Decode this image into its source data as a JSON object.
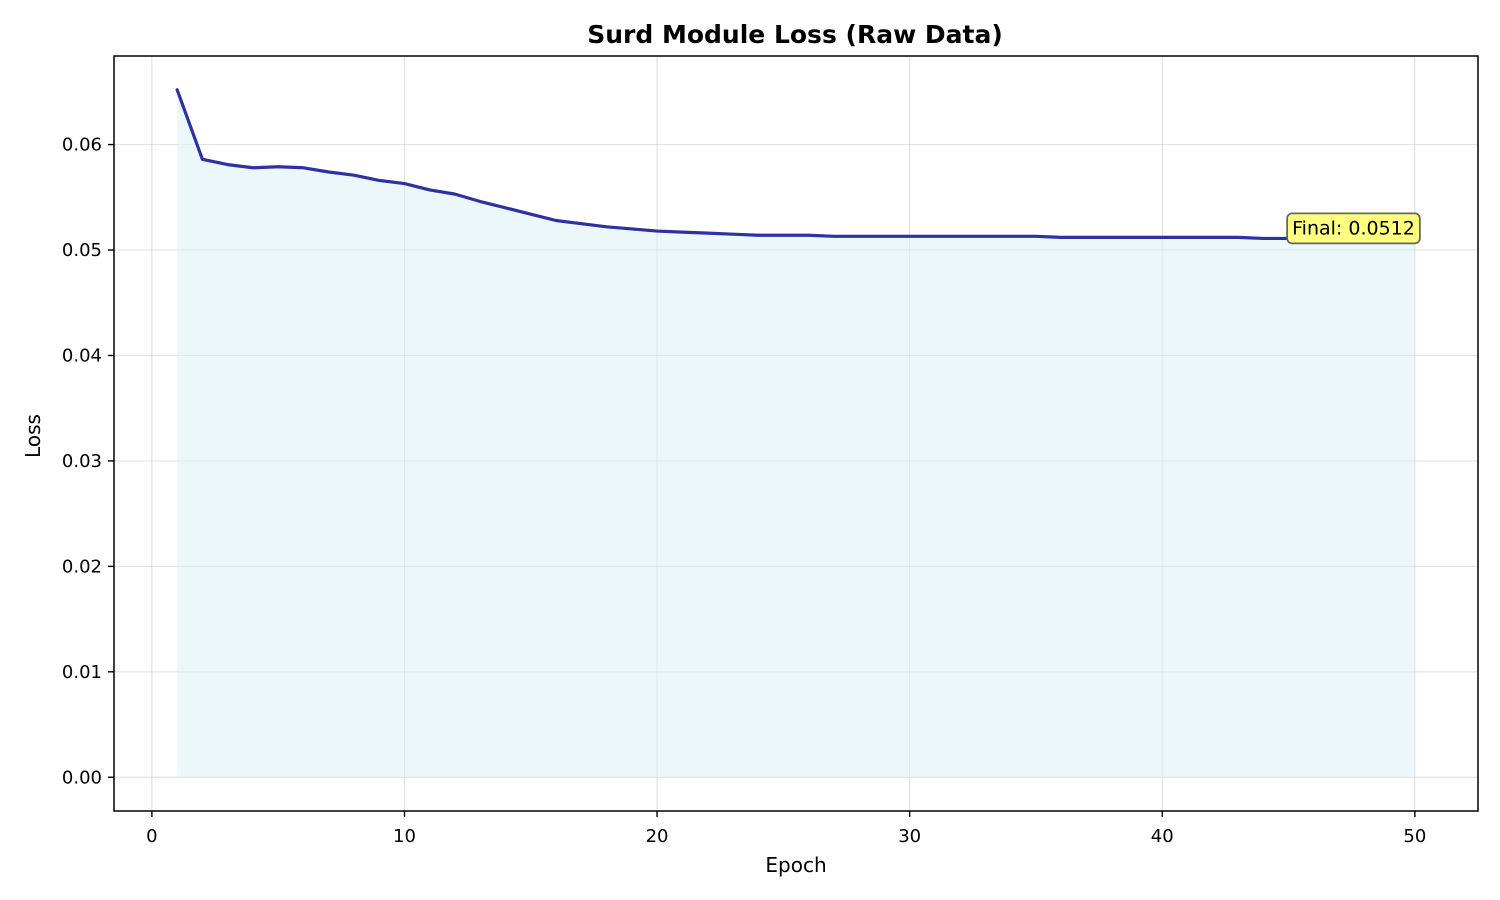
{
  "chart_data": {
    "type": "area",
    "title": "Surd Module Loss (Raw Data)",
    "xlabel": "Epoch",
    "ylabel": "Loss",
    "xlim": [
      -1.5,
      52.5
    ],
    "ylim": [
      -0.0032,
      0.0684
    ],
    "xticks": [
      0,
      10,
      20,
      30,
      40,
      50
    ],
    "yticks": [
      0.0,
      0.01,
      0.02,
      0.03,
      0.04,
      0.05,
      0.06
    ],
    "ytick_labels": [
      "0.00",
      "0.01",
      "0.02",
      "0.03",
      "0.04",
      "0.05",
      "0.06"
    ],
    "grid": true,
    "line_color": "#2e31a0",
    "fill_color": "#ddf0f5",
    "annotation": {
      "text": "Final: 0.0512",
      "epoch": 50,
      "value": 0.0512,
      "box_color": "#ffff80",
      "edge_color": "#666666"
    },
    "x": [
      1,
      2,
      3,
      4,
      5,
      6,
      7,
      8,
      9,
      10,
      11,
      12,
      13,
      14,
      15,
      16,
      17,
      18,
      19,
      20,
      21,
      22,
      23,
      24,
      25,
      26,
      27,
      28,
      29,
      30,
      31,
      32,
      33,
      34,
      35,
      36,
      37,
      38,
      39,
      40,
      41,
      42,
      43,
      44,
      45,
      46,
      47,
      48,
      49,
      50
    ],
    "values": [
      0.0652,
      0.0586,
      0.0581,
      0.0578,
      0.0579,
      0.0578,
      0.0574,
      0.0571,
      0.0566,
      0.0563,
      0.0557,
      0.0553,
      0.0546,
      0.054,
      0.0534,
      0.0528,
      0.0525,
      0.0522,
      0.052,
      0.0518,
      0.0517,
      0.0516,
      0.0515,
      0.0514,
      0.0514,
      0.0514,
      0.0513,
      0.0513,
      0.0513,
      0.0513,
      0.0513,
      0.0513,
      0.0513,
      0.0513,
      0.0513,
      0.0512,
      0.0512,
      0.0512,
      0.0512,
      0.0512,
      0.0512,
      0.0512,
      0.0512,
      0.0511,
      0.0511,
      0.0511,
      0.0511,
      0.0511,
      0.0511,
      0.0512
    ]
  }
}
